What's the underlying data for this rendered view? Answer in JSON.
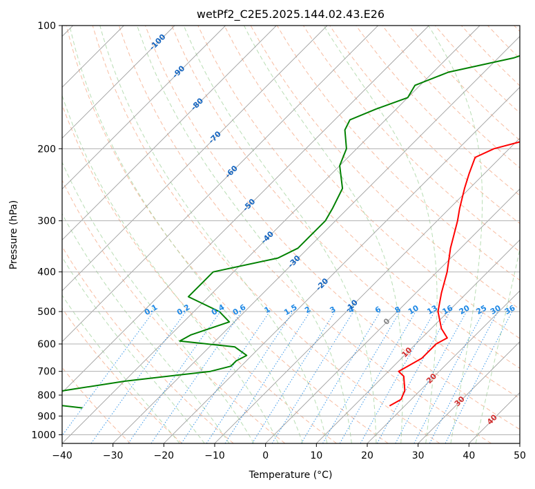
{
  "chart_data": {
    "type": "skew-t",
    "title": "wetPf2_C2E5.2025.144.02.43.E26",
    "xlabel": "Temperature (°C)",
    "ylabel": "Pressure (hPa)",
    "xlim": [
      -40,
      50
    ],
    "ylim": [
      1050,
      100
    ],
    "y_scale": "log",
    "grid": true,
    "x_ticks": [
      -40,
      -30,
      -20,
      -10,
      0,
      10,
      20,
      30,
      40,
      50
    ],
    "x_tick_labels": [
      "−40",
      "−30",
      "−20",
      "−10",
      "0",
      "10",
      "20",
      "30",
      "40",
      "50"
    ],
    "y_ticks": [
      100,
      200,
      300,
      400,
      500,
      600,
      700,
      800,
      900,
      1000
    ],
    "y_tick_labels": [
      "100",
      "200",
      "300",
      "400",
      "500",
      "600",
      "700",
      "800",
      "900",
      "1000"
    ],
    "isotherm_labels": [
      {
        "value": -100,
        "text": "-100",
        "p": 110
      },
      {
        "value": -90,
        "text": "-90",
        "p": 130
      },
      {
        "value": -80,
        "text": "-80",
        "p": 156
      },
      {
        "value": -70,
        "text": "-70",
        "p": 188
      },
      {
        "value": -60,
        "text": "-60",
        "p": 228
      },
      {
        "value": -50,
        "text": "-50",
        "p": 275
      },
      {
        "value": -40,
        "text": "-40",
        "p": 330
      },
      {
        "value": -30,
        "text": "-30",
        "p": 378
      },
      {
        "value": -20,
        "text": "-20",
        "p": 430
      },
      {
        "value": -10,
        "text": "-10",
        "p": 485
      },
      {
        "value": 0,
        "text": "0",
        "p": 530
      },
      {
        "value": 10,
        "text": "10",
        "p": 630
      },
      {
        "value": 20,
        "text": "20",
        "p": 730
      },
      {
        "value": 30,
        "text": "30",
        "p": 830
      },
      {
        "value": 40,
        "text": "40",
        "p": 920
      }
    ],
    "mixing_ratio_labels": [
      "0.1",
      "0.2",
      "0.4",
      "0.6",
      "1",
      "1.5",
      "2",
      "3",
      "4",
      "6",
      "8",
      "10",
      "13",
      "16",
      "20",
      "25",
      "30",
      "36"
    ],
    "series": [
      {
        "name": "",
        "color": "#ff0000",
        "points": [
          {
            "p": 100,
            "t": 19
          },
          {
            "p": 110,
            "t": 15
          },
          {
            "p": 120,
            "t": 13
          },
          {
            "p": 130,
            "t": 13
          },
          {
            "p": 140,
            "t": 13
          },
          {
            "p": 150,
            "t": 10
          },
          {
            "p": 160,
            "t": 6
          },
          {
            "p": 170,
            "t": 3
          },
          {
            "p": 180,
            "t": -1
          },
          {
            "p": 190,
            "t": -8
          },
          {
            "p": 200,
            "t": -13
          },
          {
            "p": 210,
            "t": -15
          },
          {
            "p": 230,
            "t": -13
          },
          {
            "p": 250,
            "t": -11
          },
          {
            "p": 280,
            "t": -8
          },
          {
            "p": 300,
            "t": -6
          },
          {
            "p": 350,
            "t": -2
          },
          {
            "p": 400,
            "t": 2
          },
          {
            "p": 450,
            "t": 5
          },
          {
            "p": 500,
            "t": 8
          },
          {
            "p": 550,
            "t": 12
          },
          {
            "p": 580,
            "t": 15
          },
          {
            "p": 600,
            "t": 14
          },
          {
            "p": 650,
            "t": 14
          },
          {
            "p": 700,
            "t": 12
          },
          {
            "p": 720,
            "t": 14
          },
          {
            "p": 780,
            "t": 17
          },
          {
            "p": 820,
            "t": 18
          },
          {
            "p": 850,
            "t": 17
          }
        ]
      },
      {
        "name": "",
        "color": "#008000",
        "points": [
          {
            "p": 100,
            "t": -12
          },
          {
            "p": 110,
            "t": -21
          },
          {
            "p": 120,
            "t": -27
          },
          {
            "p": 130,
            "t": -37
          },
          {
            "p": 140,
            "t": -41
          },
          {
            "p": 150,
            "t": -40
          },
          {
            "p": 160,
            "t": -44
          },
          {
            "p": 170,
            "t": -47
          },
          {
            "p": 180,
            "t": -46
          },
          {
            "p": 200,
            "t": -42
          },
          {
            "p": 220,
            "t": -40
          },
          {
            "p": 250,
            "t": -35
          },
          {
            "p": 280,
            "t": -33
          },
          {
            "p": 300,
            "t": -32
          },
          {
            "p": 330,
            "t": -32
          },
          {
            "p": 350,
            "t": -32
          },
          {
            "p": 370,
            "t": -34
          },
          {
            "p": 400,
            "t": -44
          },
          {
            "p": 430,
            "t": -44
          },
          {
            "p": 460,
            "t": -44
          },
          {
            "p": 500,
            "t": -35
          },
          {
            "p": 530,
            "t": -31
          },
          {
            "p": 570,
            "t": -36
          },
          {
            "p": 590,
            "t": -37
          },
          {
            "p": 610,
            "t": -25
          },
          {
            "p": 640,
            "t": -21
          },
          {
            "p": 660,
            "t": -22
          },
          {
            "p": 680,
            "t": -22
          },
          {
            "p": 700,
            "t": -25
          },
          {
            "p": 740,
            "t": -40
          },
          {
            "p": 780,
            "t": -50
          },
          {
            "p": 810,
            "t": -60
          },
          {
            "p": 830,
            "t": -55
          },
          {
            "p": 860,
            "t": -43
          }
        ]
      }
    ]
  }
}
